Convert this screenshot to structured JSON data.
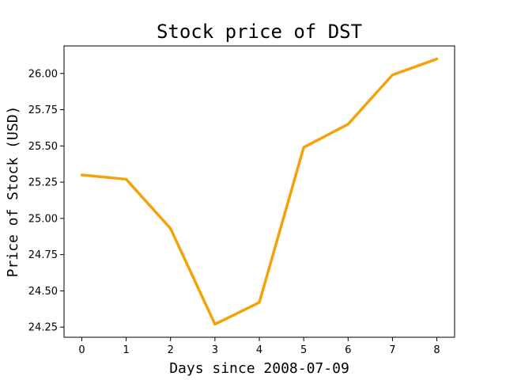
{
  "chart_data": {
    "type": "line",
    "title": "Stock price of DST",
    "xlabel": "Days since 2008-07-09",
    "ylabel": "Price of Stock (USD)",
    "x": [
      0,
      1,
      2,
      3,
      4,
      5,
      6,
      7,
      8
    ],
    "series": [
      {
        "values": [
          25.3,
          25.27,
          24.93,
          24.27,
          24.42,
          25.49,
          25.65,
          25.99,
          26.1
        ],
        "color": "#F5A20A"
      }
    ],
    "xlim": [
      -0.4,
      8.4
    ],
    "ylim": [
      24.18,
      26.19
    ],
    "xticks": [
      "0",
      "1",
      "2",
      "3",
      "4",
      "5",
      "6",
      "7",
      "8"
    ],
    "yticks": [
      "24.25",
      "24.50",
      "24.75",
      "25.00",
      "25.25",
      "25.50",
      "25.75",
      "26.00"
    ],
    "grid": false
  }
}
